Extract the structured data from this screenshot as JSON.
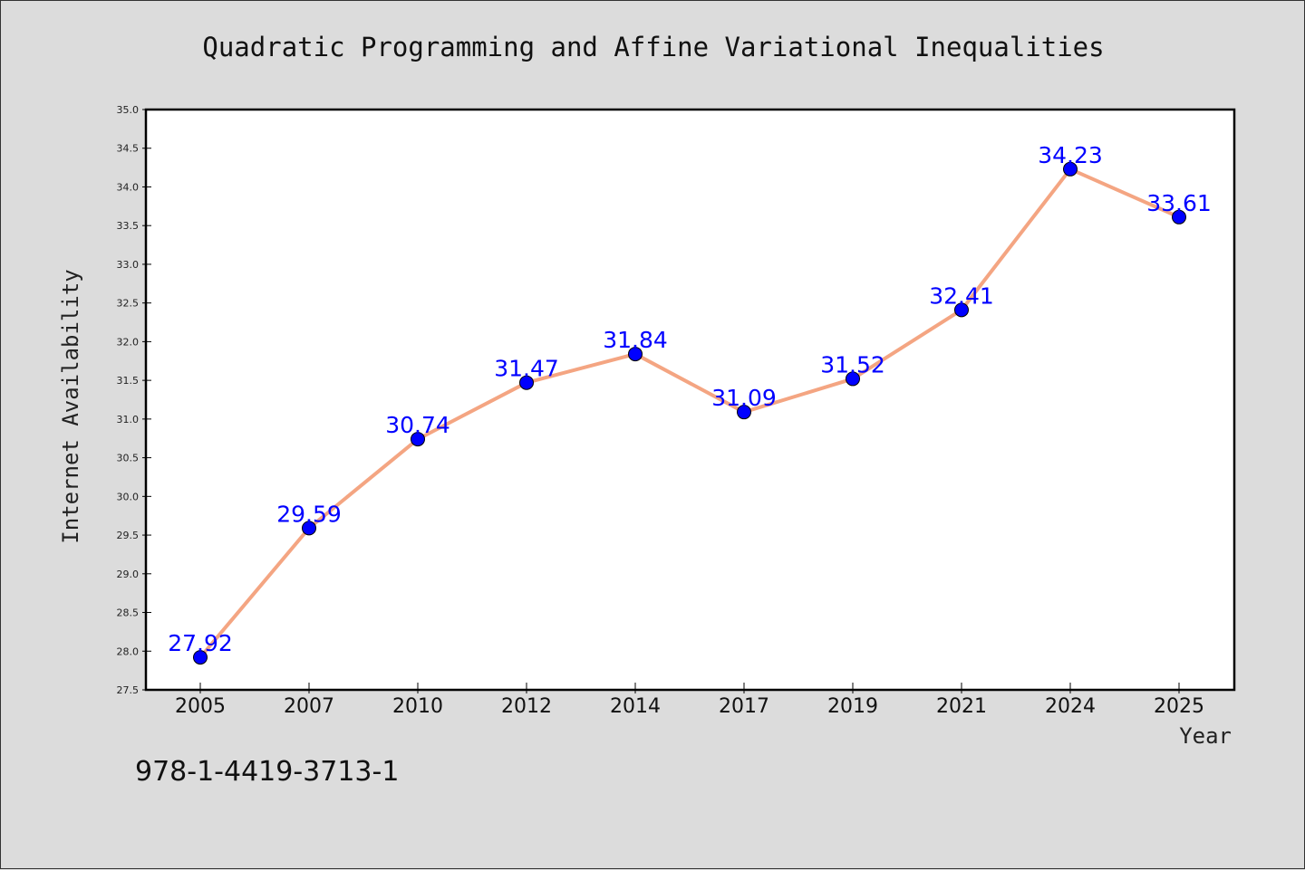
{
  "chart_data": {
    "type": "line",
    "title": "Quadratic Programming and Affine Variational Inequalities",
    "xlabel": "Year",
    "ylabel": "Internet Availability",
    "categories": [
      "2005",
      "2007",
      "2010",
      "2012",
      "2014",
      "2017",
      "2019",
      "2021",
      "2024",
      "2025"
    ],
    "series": [
      {
        "values": [
          27.92,
          29.59,
          30.74,
          31.47,
          31.84,
          31.09,
          31.52,
          32.41,
          34.23,
          33.61
        ],
        "labels": [
          "27.92",
          "29.59",
          "30.74",
          "31.47",
          "31.84",
          "31.09",
          "31.52",
          "32.41",
          "34.23",
          "33.61"
        ]
      }
    ],
    "ylim": [
      27.5,
      35.0
    ],
    "yticks": [
      "27.5",
      "28.0",
      "28.5",
      "29.0",
      "29.5",
      "30.0",
      "30.5",
      "31.0",
      "31.5",
      "32.0",
      "32.5",
      "33.0",
      "33.5",
      "34.0",
      "34.5",
      "35.0"
    ],
    "grid": false,
    "colors": {
      "line": "#f4a582",
      "marker": "#0000ff",
      "data_label": "#0000ff",
      "plot_background": "#ffffff",
      "figure_background": "#dcdcdc"
    }
  },
  "footer": {
    "isbn": "978-1-4419-3713-1"
  }
}
